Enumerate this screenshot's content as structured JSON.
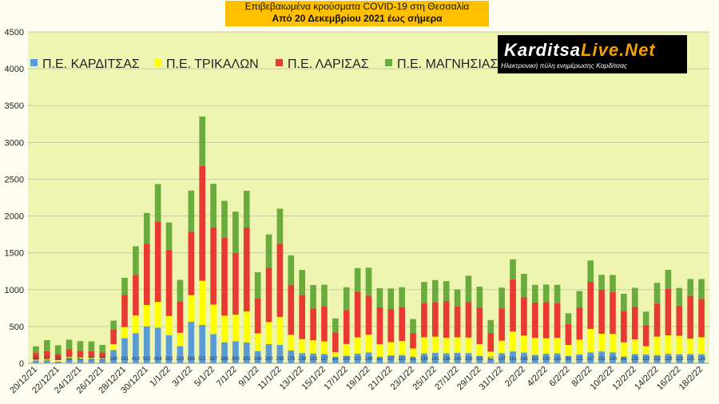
{
  "title": {
    "line1": "Επιβεβαιωμένα κρούσματα COVID-19 στη Θεσσαλία",
    "line2": "Από 20 Δεκεμβρίου 2021 έως σήμερα"
  },
  "logo": {
    "brand_a": "Karditsa",
    "brand_b": "Live.Net",
    "tagline": "Ηλεκτρονική πύλη ενημέρωσης Καρδίτσας"
  },
  "chart_data": {
    "type": "bar",
    "stacked": true,
    "ylim": [
      0,
      4500
    ],
    "yticks": [
      0,
      500,
      1000,
      1500,
      2000,
      2500,
      3000,
      3500,
      4000,
      4500
    ],
    "grid": "horizontal",
    "legend_position": "top-left",
    "colors": {
      "background": "#eef5b0",
      "grid": "#c8cda0",
      "karditsa": "#5b9bd5",
      "trikala": "#ffff00",
      "larisa": "#e83a30",
      "magnisia": "#6aab3e"
    },
    "categories": [
      "20/12/21",
      "21/12/21",
      "22/12/21",
      "23/12/21",
      "24/12/21",
      "25/12/21",
      "26/12/21",
      "27/12/21",
      "28/12/21",
      "29/12/21",
      "30/12/21",
      "31/12/21",
      "1/1/22",
      "2/1/22",
      "3/1/22",
      "4/1/22",
      "5/1/22",
      "6/1/22",
      "7/1/22",
      "8/1/22",
      "9/1/22",
      "10/1/22",
      "11/1/22",
      "12/1/22",
      "13/1/22",
      "14/1/22",
      "15/1/22",
      "16/1/22",
      "17/1/22",
      "18/1/22",
      "19/1/22",
      "20/1/22",
      "21/1/22",
      "22/1/22",
      "23/1/22",
      "24/1/22",
      "25/1/22",
      "26/1/22",
      "27/1/22",
      "28/1/22",
      "29/1/22",
      "30/1/22",
      "31/1/22",
      "1/2/22",
      "2/2/22",
      "3/2/22",
      "4/2/22",
      "5/2/22",
      "6/2/22",
      "7/2/22",
      "8/2/22",
      "9/2/22",
      "10/2/22",
      "11/2/22",
      "12/2/22",
      "13/2/22",
      "14/2/22",
      "15/2/22",
      "16/2/22",
      "17/2/22",
      "18/2/22"
    ],
    "x_tick_labels": [
      "20/12/21",
      "22/12/21",
      "24/12/21",
      "26/12/21",
      "28/12/21",
      "30/12/21",
      "1/1/22",
      "3/1/22",
      "5/1/22",
      "7/1/22",
      "9/1/22",
      "11/1/22",
      "13/1/22",
      "15/1/22",
      "17/1/22",
      "19/1/22",
      "21/1/22",
      "23/1/22",
      "25/1/22",
      "27/1/22",
      "29/1/22",
      "31/1/22",
      "2/2/22",
      "4/2/22",
      "6/2/22",
      "8/2/22",
      "10/2/22",
      "12/2/22",
      "14/2/22",
      "16/2/22",
      "18/2/22"
    ],
    "series": [
      {
        "name": "Π.Ε. ΚΑΡΔΙΤΣΑΣ",
        "color": "#5b9bd5",
        "values": [
          40,
          42,
          25,
          65,
          61,
          55,
          55,
          180,
          341,
          410,
          502,
          484,
          382,
          233,
          565,
          521,
          397,
          286,
          300,
          283,
          166,
          260,
          249,
          176,
          138,
          133,
          127,
          80,
          102,
          132,
          148,
          80,
          107,
          113,
          81,
          134,
          141,
          136,
          143,
          139,
          101,
          67,
          137,
          161,
          145,
          115,
          130,
          135,
          99,
          121,
          147,
          161,
          149,
          85,
          125,
          122,
          112,
          129,
          123,
          125,
          124
        ],
        "labels": [
          "40",
          "42",
          "25",
          "65",
          "61",
          "55",
          "55",
          "180",
          "341",
          "410",
          "502",
          "484",
          "382",
          "233",
          "565",
          "521",
          "397",
          "286",
          "300",
          "283",
          "166",
          "260",
          "249",
          "176",
          "138",
          "133",
          "127",
          "80",
          "102",
          "132",
          "148",
          "80",
          "107",
          "113",
          "81",
          "134",
          "141",
          "136",
          "143",
          "139",
          "101",
          "67",
          "137",
          "161",
          "145",
          "115",
          "130",
          "135",
          "99",
          "121",
          "147",
          "161",
          "149",
          "85",
          "125",
          "122",
          "112",
          "129",
          "123",
          "125",
          "124"
        ]
      },
      {
        "name": "Π.Ε. ΤΡΙΚΑΛΩΝ",
        "color": "#ffff00",
        "values": [
          10,
          22,
          20,
          25,
          20,
          22,
          15,
          80,
          150,
          240,
          290,
          350,
          260,
          180,
          360,
          600,
          400,
          360,
          360,
          420,
          240,
          300,
          380,
          210,
          190,
          180,
          170,
          70,
          160,
          220,
          240,
          180,
          180,
          190,
          120,
          220,
          220,
          210,
          210,
          210,
          160,
          90,
          170,
          270,
          230,
          230,
          210,
          210,
          150,
          200,
          320,
          240,
          250,
          200,
          200,
          110,
          250,
          250,
          250,
          210,
          230
        ]
      },
      {
        "name": "Π.Ε. ΛΑΡΙΣΑΣ",
        "color": "#e83a30",
        "values": [
          90,
          100,
          80,
          100,
          90,
          90,
          80,
          200,
          440,
          550,
          830,
          1090,
          900,
          430,
          860,
          1560,
          1050,
          1060,
          840,
          1140,
          480,
          740,
          1000,
          680,
          600,
          430,
          480,
          270,
          460,
          620,
          530,
          500,
          450,
          460,
          210,
          460,
          470,
          500,
          420,
          480,
          500,
          250,
          440,
          710,
          520,
          480,
          490,
          470,
          290,
          440,
          640,
          600,
          570,
          420,
          440,
          290,
          450,
          630,
          410,
          580,
          520
        ]
      },
      {
        "name": "Π.Ε. ΜΑΓΝΗΣΙΑΣ",
        "color": "#6aab3e",
        "values": [
          90,
          150,
          120,
          130,
          130,
          130,
          100,
          120,
          230,
          390,
          420,
          510,
          370,
          290,
          560,
          670,
          590,
          500,
          560,
          500,
          350,
          450,
          470,
          400,
          340,
          320,
          290,
          190,
          310,
          320,
          380,
          260,
          280,
          270,
          190,
          290,
          300,
          270,
          230,
          360,
          280,
          180,
          280,
          270,
          320,
          240,
          240,
          250,
          140,
          220,
          290,
          200,
          230,
          240,
          260,
          180,
          280,
          260,
          240,
          230,
          270
        ]
      }
    ]
  }
}
